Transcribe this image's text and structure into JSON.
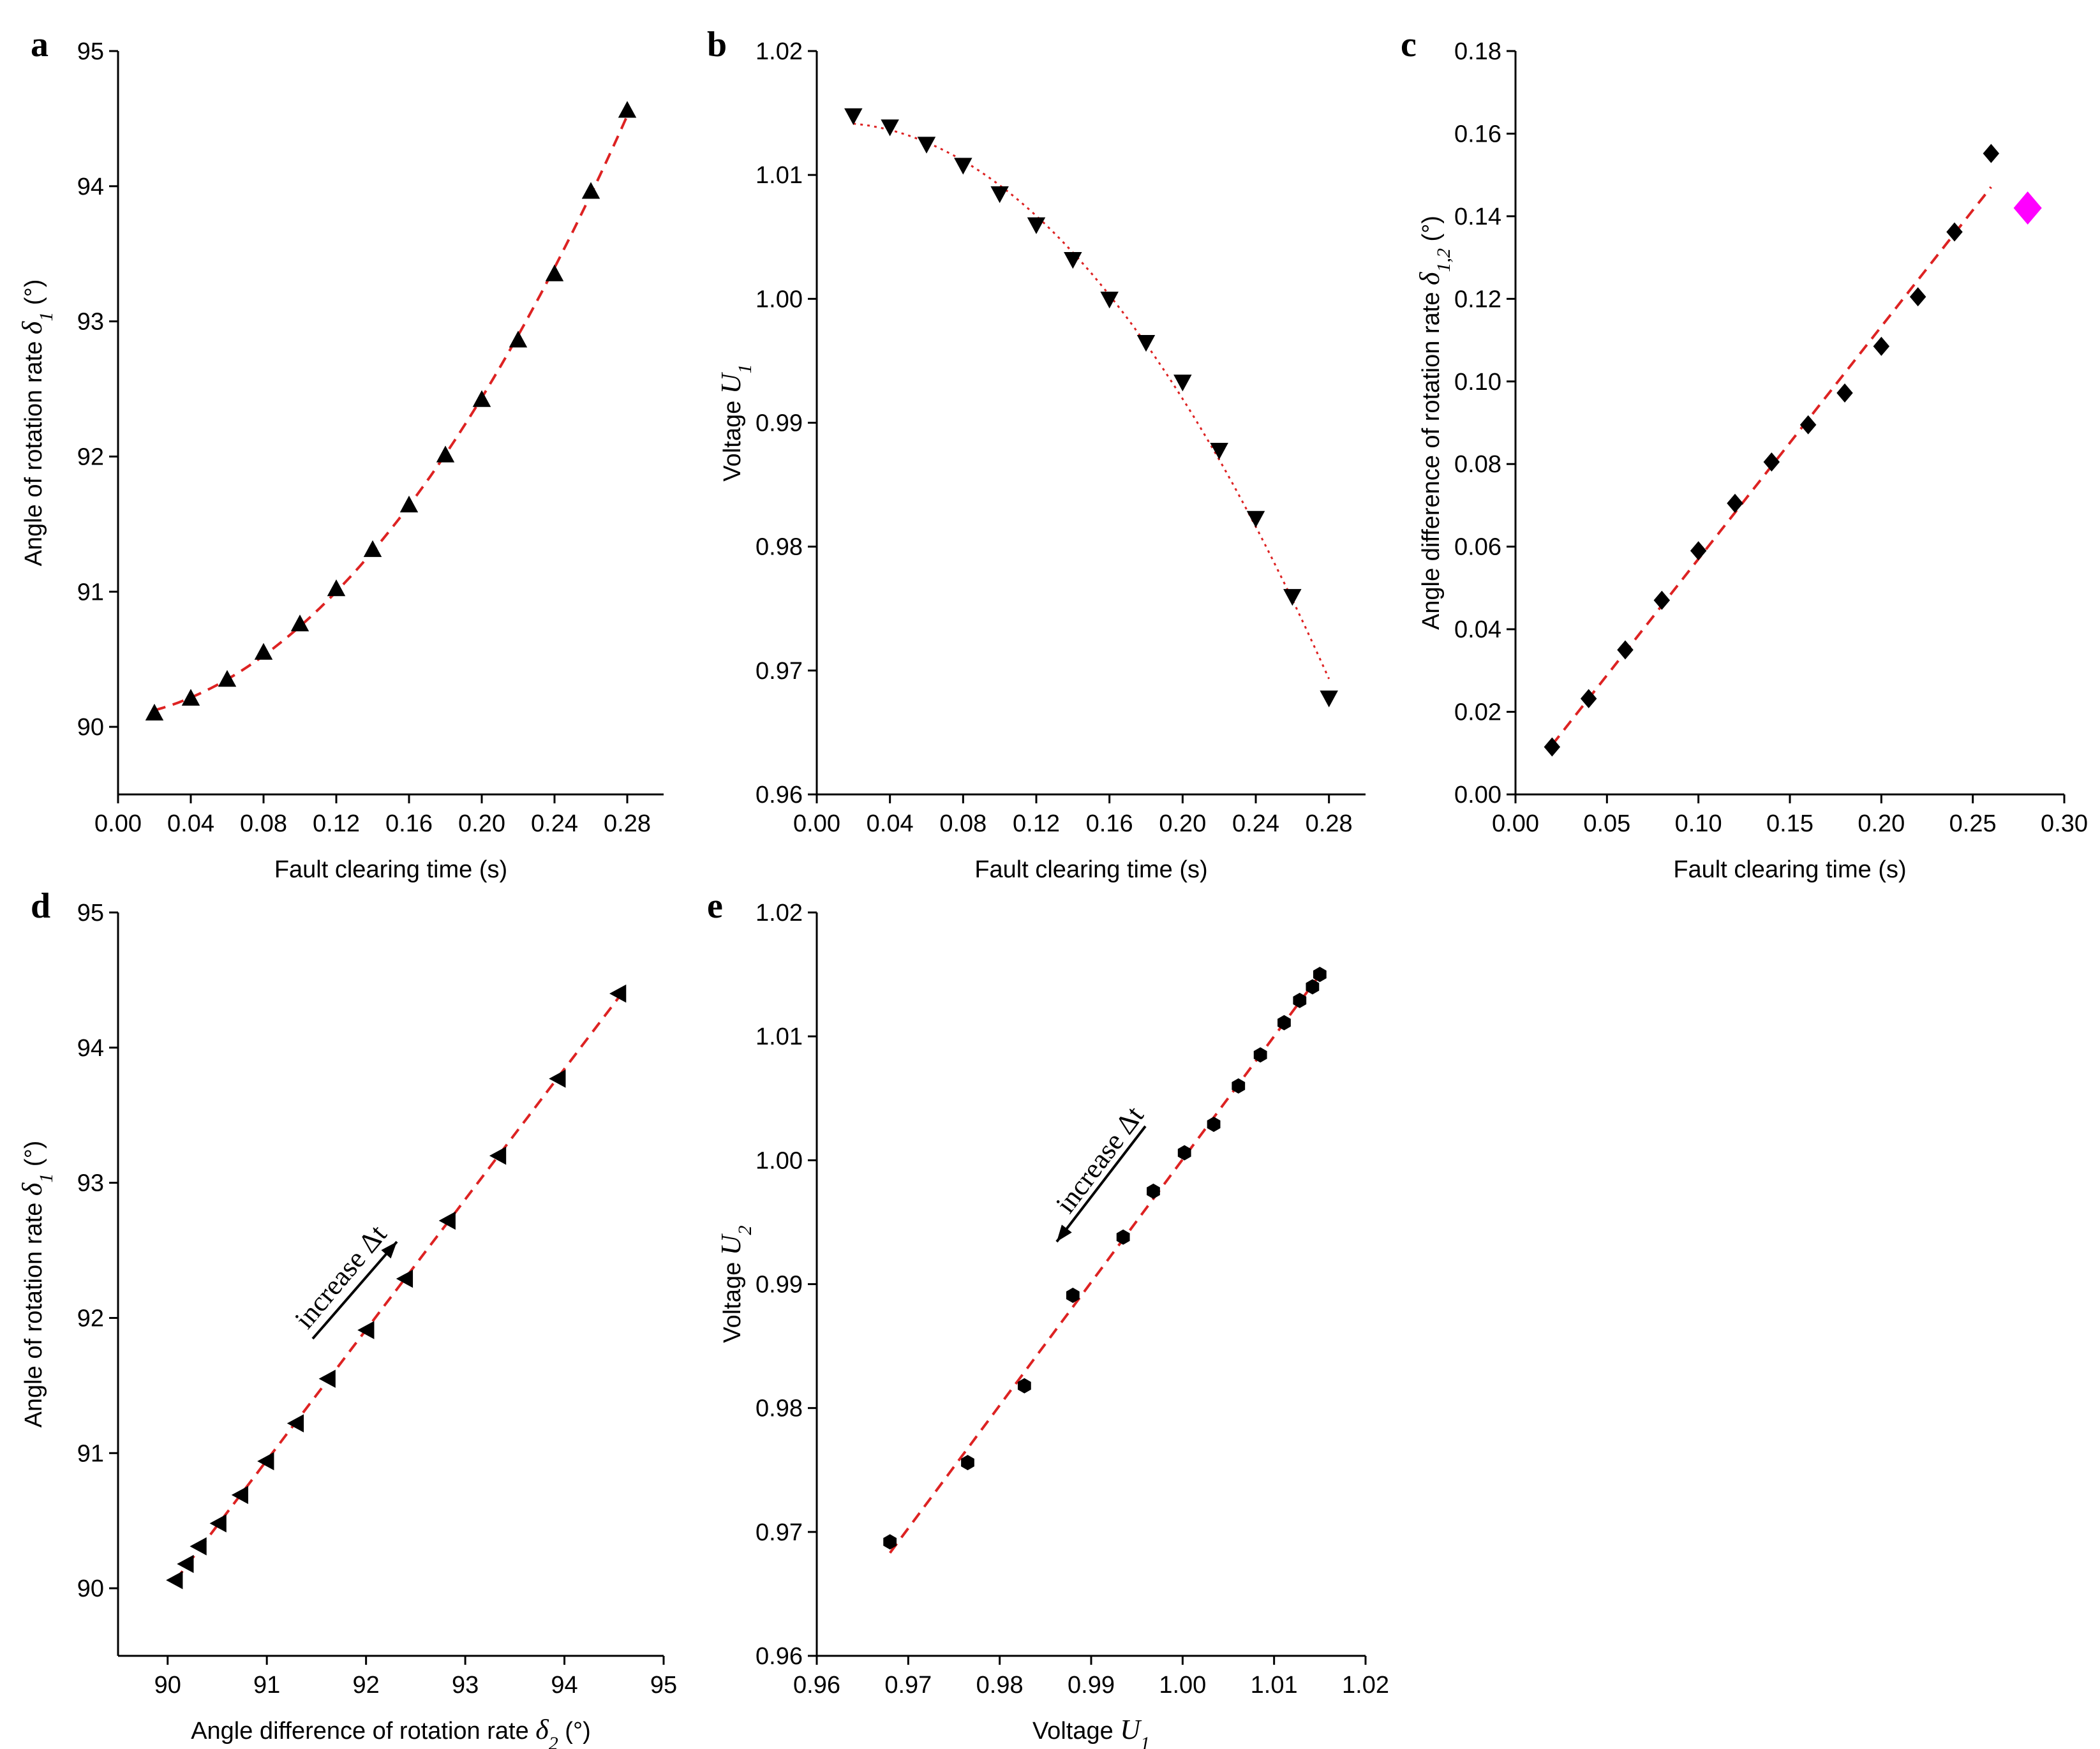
{
  "chart_data": [
    {
      "panel": "a",
      "type": "scatter",
      "xlabel": "Fault clearing time (s)",
      "ylabel": {
        "prefix": "Angle of rotation rate ",
        "symbol": "δ",
        "sub": "1",
        "suffix": " (°)"
      },
      "xlim": [
        0.0,
        0.3
      ],
      "ylim": [
        89.5,
        95.0
      ],
      "xticks": [
        "0.00",
        "0.04",
        "0.08",
        "0.12",
        "0.16",
        "0.20",
        "0.24",
        "0.28"
      ],
      "yticks": [
        "90",
        "91",
        "92",
        "93",
        "94",
        "95"
      ],
      "marker": "triangle-up",
      "fit": "dashed",
      "x": [
        0.02,
        0.04,
        0.06,
        0.08,
        0.1,
        0.12,
        0.14,
        0.16,
        0.18,
        0.2,
        0.22,
        0.24,
        0.26,
        0.28
      ],
      "y": [
        90.1,
        90.21,
        90.35,
        90.55,
        90.76,
        91.02,
        91.31,
        91.64,
        92.01,
        92.42,
        92.86,
        93.35,
        93.96,
        94.56
      ]
    },
    {
      "panel": "b",
      "type": "scatter",
      "xlabel": "Fault clearing time (s)",
      "ylabel": {
        "prefix": "Voltage ",
        "symbol": "U",
        "sub": "1",
        "suffix": ""
      },
      "xlim": [
        0.0,
        0.3
      ],
      "ylim": [
        0.96,
        1.02
      ],
      "xticks": [
        "0.00",
        "0.04",
        "0.08",
        "0.12",
        "0.16",
        "0.20",
        "0.24",
        "0.28"
      ],
      "yticks": [
        "0.96",
        "0.97",
        "0.98",
        "0.99",
        "1.00",
        "1.01",
        "1.02"
      ],
      "marker": "triangle-down",
      "fit": "dotted",
      "x": [
        0.02,
        0.04,
        0.06,
        0.08,
        0.1,
        0.12,
        0.14,
        0.16,
        0.18,
        0.2,
        0.22,
        0.24,
        0.26,
        0.28
      ],
      "y": [
        1.0148,
        1.0139,
        1.0125,
        1.0108,
        1.0085,
        1.006,
        1.0032,
        1.0,
        0.9965,
        0.9933,
        0.9878,
        0.9823,
        0.976,
        0.9678
      ]
    },
    {
      "panel": "c",
      "type": "scatter",
      "xlabel": "Fault clearing time (s)",
      "ylabel": {
        "prefix": "Angle difference of rotation rate ",
        "symbol": "δ",
        "sub": "1,2",
        "suffix": " (°)"
      },
      "xlim": [
        0.0,
        0.3
      ],
      "ylim": [
        0.0,
        0.18
      ],
      "xticks": [
        "0.00",
        "0.05",
        "0.10",
        "0.15",
        "0.20",
        "0.25",
        "0.30"
      ],
      "yticks": [
        "0.00",
        "0.02",
        "0.04",
        "0.06",
        "0.08",
        "0.10",
        "0.12",
        "0.14",
        "0.16",
        "0.18"
      ],
      "marker": "diamond",
      "fit": "dashed",
      "x": [
        0.02,
        0.04,
        0.06,
        0.08,
        0.1,
        0.12,
        0.14,
        0.16,
        0.18,
        0.2,
        0.22,
        0.24,
        0.26
      ],
      "y": [
        0.0115,
        0.0232,
        0.035,
        0.047,
        0.059,
        0.0705,
        0.0805,
        0.0895,
        0.0972,
        0.1085,
        0.1205,
        0.1362,
        0.1552
      ],
      "highlight": {
        "x": 0.28,
        "y": 0.142,
        "color": "#ff00ff"
      }
    },
    {
      "panel": "d",
      "type": "scatter",
      "xlabel": {
        "prefix": "Angle difference of rotation rate ",
        "symbol": "δ",
        "sub": "2",
        "suffix": " (°)"
      },
      "ylabel": {
        "prefix": "Angle of rotation rate ",
        "symbol": "δ",
        "sub": "1",
        "suffix": " (°)"
      },
      "xlim": [
        89.5,
        95.0
      ],
      "ylim": [
        89.5,
        95.0
      ],
      "xticks": [
        "90",
        "91",
        "92",
        "93",
        "94",
        "95"
      ],
      "yticks": [
        "90",
        "91",
        "92",
        "93",
        "94",
        "95"
      ],
      "marker": "triangle-left",
      "fit": "dashed",
      "annotation": {
        "text": "increase Δt",
        "direction": "up"
      },
      "x": [
        90.08,
        90.19,
        90.32,
        90.52,
        90.74,
        91.0,
        91.3,
        91.62,
        92.01,
        92.4,
        92.83,
        93.34,
        93.94,
        94.55
      ],
      "y": [
        90.06,
        90.18,
        90.31,
        90.48,
        90.69,
        90.94,
        91.22,
        91.55,
        91.91,
        92.29,
        92.72,
        93.2,
        93.77,
        94.4
      ]
    },
    {
      "panel": "e",
      "type": "scatter",
      "xlabel": {
        "prefix": "Voltage ",
        "symbol": "U",
        "sub": "1",
        "suffix": ""
      },
      "ylabel": {
        "prefix": "Voltage ",
        "symbol": "U",
        "sub": "2",
        "suffix": ""
      },
      "xlim": [
        0.96,
        1.02
      ],
      "ylim": [
        0.96,
        1.02
      ],
      "xticks": [
        "0.96",
        "0.97",
        "0.98",
        "0.99",
        "1.00",
        "1.01",
        "1.02"
      ],
      "yticks": [
        "0.96",
        "0.97",
        "0.98",
        "0.99",
        "1.00",
        "1.01",
        "1.02"
      ],
      "marker": "hexagon",
      "fit": "dashed",
      "annotation": {
        "text": "increase Δt",
        "direction": "down"
      },
      "x": [
        0.968,
        0.9765,
        0.9827,
        0.988,
        0.9935,
        0.9968,
        1.0002,
        1.0034,
        1.0061,
        1.0085,
        1.0111,
        1.0128,
        1.0142,
        1.015
      ],
      "y": [
        0.9692,
        0.9756,
        0.9818,
        0.9891,
        0.9938,
        0.9975,
        1.0006,
        1.0029,
        1.006,
        1.0085,
        1.0111,
        1.0129,
        1.014,
        1.015
      ]
    }
  ],
  "colors": {
    "fit": "#dd2222",
    "marker": "#000000",
    "highlight": "#ff00ff"
  }
}
